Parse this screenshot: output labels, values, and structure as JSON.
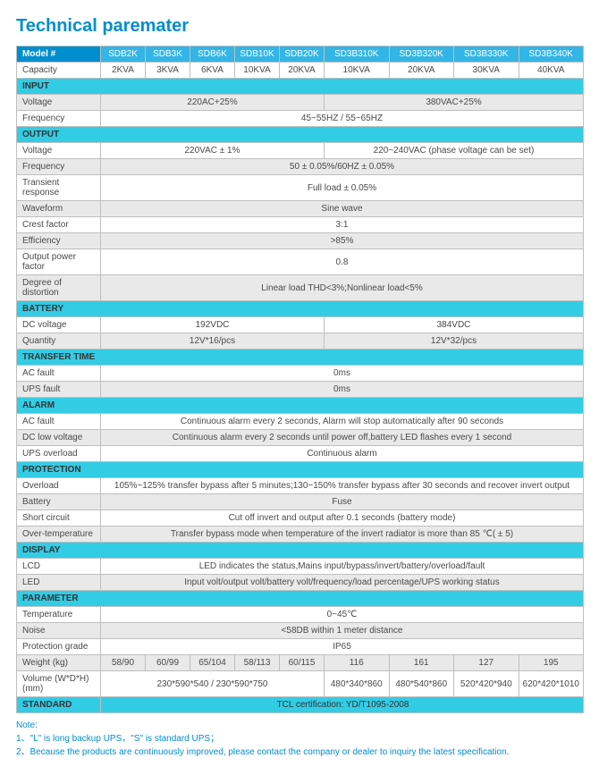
{
  "title": "Technical paremater",
  "header": {
    "label": "Model #",
    "models": [
      "SDB2K",
      "SDB3K",
      "SDB6K",
      "SDB10K",
      "SDB20K",
      "SD3B310K",
      "SD3B320K",
      "SD3B330K",
      "SD3B340K"
    ]
  },
  "rows": {
    "capacity_label": "Capacity",
    "capacity": [
      "2KVA",
      "3KVA",
      "6KVA",
      "10KVA",
      "20KVA",
      "10KVA",
      "20KVA",
      "30KVA",
      "40KVA"
    ],
    "input_section": "INPUT",
    "voltage_label": "Voltage",
    "input_voltage": [
      "220AC+25%",
      "380VAC+25%"
    ],
    "frequency_label": "Frequency",
    "input_frequency": "45~55HZ / 55~65HZ",
    "output_section": "OUTPUT",
    "output_voltage": [
      "220VAC ± 1%",
      "220~240VAC (phase voltage can be set)"
    ],
    "output_frequency": "50 ± 0.05%/60HZ ± 0.05%",
    "transient_label": "Transient response",
    "transient": "Full load ± 0.05%",
    "waveform_label": "Waveform",
    "waveform": "Sine wave",
    "crest_label": "Crest factor",
    "crest": "3:1",
    "efficiency_label": "Efficiency",
    "efficiency": ">85%",
    "opf_label": "Output power factor",
    "opf": "0.8",
    "distortion_label": "Degree of distortion",
    "distortion": "Linear load THD<3%;Nonlinear load<5%",
    "battery_section": "BATTERY",
    "dcv_label": "DC voltage",
    "dcv": [
      "192VDC",
      "384VDC"
    ],
    "qty_label": "Quantity",
    "qty": [
      "12V*16/pcs",
      "12V*32/pcs"
    ],
    "transfer_section": "TRANSFER TIME",
    "acfault_label": "AC fault",
    "acfault_time": "0ms",
    "upsfault_label": "UPS fault",
    "upsfault_time": "0ms",
    "alarm_section": "ALARM",
    "alarm_ac": "Continuous alarm every 2 seconds, Alarm will stop automatically after 90 seconds",
    "dclow_label": "DC low voltage",
    "alarm_dclow": "Continuous alarm every 2 seconds until power off,battery LED flashes every 1 second",
    "upsoverload_label": "UPS overload",
    "alarm_overload": "Continuous alarm",
    "protection_section": "PROTECTION",
    "overload_label": "Overload",
    "prot_overload": "105%~125% transfer bypass after 5 minutes;130~150% transfer bypass after 30 seconds and recover invert output",
    "battery_label": "Battery",
    "prot_battery": "Fuse",
    "short_label": "Short circuit",
    "prot_short": "Cut off invert and output after 0.1 seconds (battery mode)",
    "overtemp_label": "Over-temperature",
    "prot_overtemp": "Transfer bypass mode when temperature of the invert radiator is more than 85 ℃( ± 5)",
    "display_section": "DISPLAY",
    "lcd_label": "LCD",
    "lcd": "LED indicates the status,Mains input/bypass/invert/battery/overload/fault",
    "led_label": "LED",
    "led": "Input volt/output volt/battery volt/frequency/load percentage/UPS working status",
    "parameter_section": "PARAMETER",
    "temp_label": "Temperature",
    "temp": "0~45℃",
    "noise_label": "Noise",
    "noise": "<58DB within 1 meter distance",
    "pgrade_label": "Protection grade",
    "pgrade": "IP65",
    "weight_label": "Weight (kg)",
    "weight": [
      "58/90",
      "60/99",
      "65/104",
      "58/113",
      "60/115",
      "116",
      "161",
      "127",
      "195"
    ],
    "volume_label": "Volume (W*D*H) (mm)",
    "volume": [
      "230*590*540 / 230*590*750",
      "480*340*860",
      "480*540*860",
      "520*420*940",
      "620*420*1010"
    ],
    "standard_section": "STANDARD",
    "standard": "TCL certification:  YD/T1095-2008"
  },
  "notes": {
    "hd": "Note:",
    "n1": "1、\"L\" is long backup UPS，\"S\" is standard UPS；",
    "n2": "2、Because the products are continuously improved, please contact the company or dealer to inquiry the latest specification."
  }
}
